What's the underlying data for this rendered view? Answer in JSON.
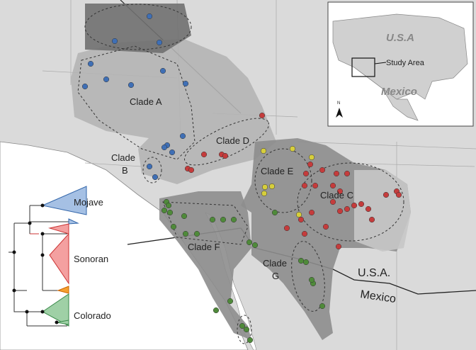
{
  "map": {
    "clades": [
      "Clade A",
      "Clade C",
      "Clade D",
      "Clade E",
      "Clade F"
    ],
    "clade_b": [
      "Clade",
      "B"
    ],
    "clade_g": [
      "Clade",
      "G"
    ],
    "border_labels": {
      "usa": "U.S.A.",
      "mexico": "Mexico"
    },
    "inset": {
      "usa": "U.S.A",
      "mexico": "Mexico",
      "study_area": "Study Area",
      "north": "N"
    },
    "tree": {
      "groups": [
        "Mojave",
        "Sonoran",
        "Colorado"
      ]
    }
  }
}
